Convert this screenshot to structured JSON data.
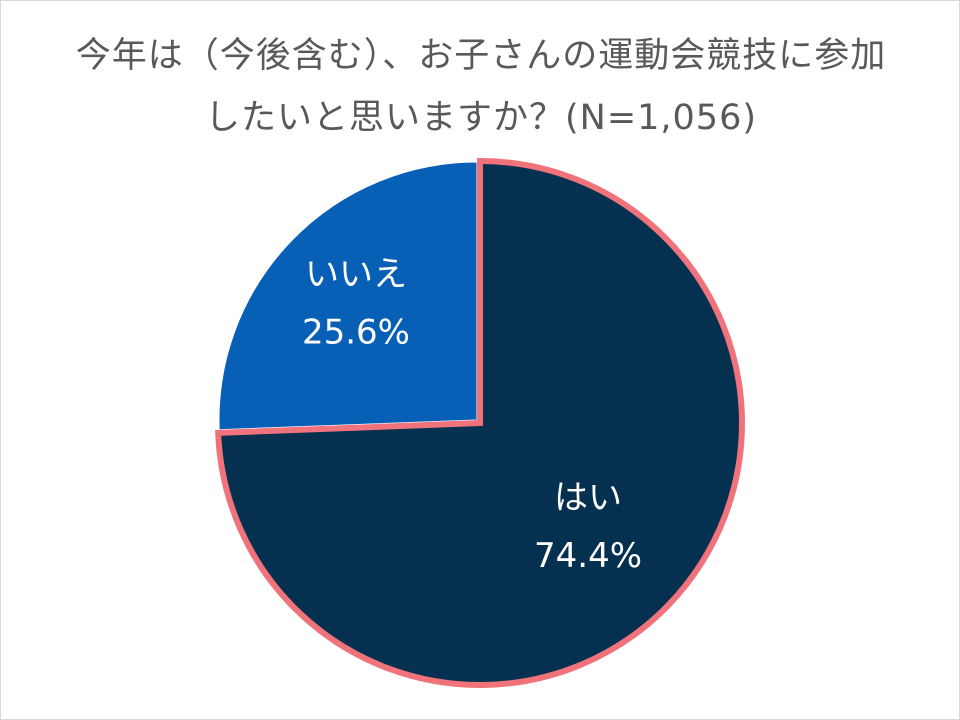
{
  "chart_data": {
    "type": "pie",
    "title_lines": [
      "今年は（今後含む）、お子さんの運動会競技に参加",
      "したいと思いますか？(N=1,056)"
    ],
    "slices": [
      {
        "label": "はい",
        "value": 74.4,
        "value_text": "74.4%",
        "color": "#06304f",
        "highlight_border": "#f0737c"
      },
      {
        "label": "いいえ",
        "value": 25.6,
        "value_text": "25.6%",
        "color": "#075fb6"
      }
    ]
  }
}
